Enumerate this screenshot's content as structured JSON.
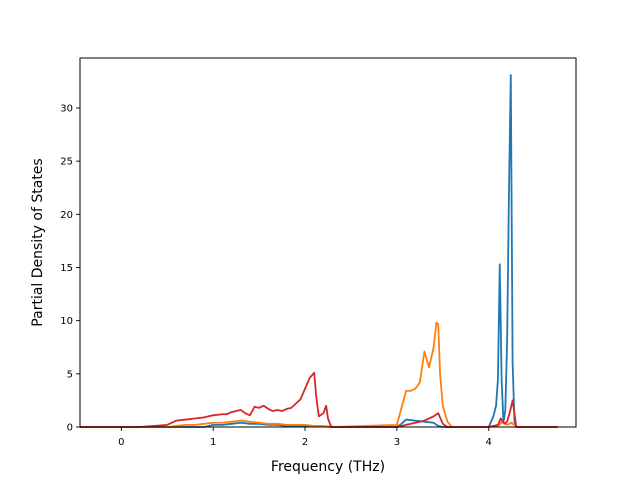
{
  "chart_data": {
    "type": "line",
    "title": "",
    "xlabel": "Frequency (THz)",
    "ylabel": "Partial Density of States",
    "xlim": [
      -0.45,
      4.95
    ],
    "ylim": [
      0,
      34.7
    ],
    "xticks": [
      0,
      1,
      2,
      3,
      4
    ],
    "yticks": [
      0,
      5,
      10,
      15,
      20,
      25,
      30
    ],
    "grid": false,
    "legend": "none",
    "series": [
      {
        "color": "#1f77b4",
        "x": [
          -0.45,
          0.9,
          1.0,
          1.1,
          1.2,
          1.3,
          1.4,
          1.5,
          1.6,
          1.7,
          1.8,
          1.9,
          2.0,
          2.1,
          2.2,
          2.3,
          3.0,
          3.05,
          3.1,
          3.2,
          3.3,
          3.4,
          3.45,
          3.5,
          3.55,
          3.6,
          4.0,
          4.05,
          4.08,
          4.1,
          4.12,
          4.14,
          4.16,
          4.18,
          4.2,
          4.22,
          4.24,
          4.26,
          4.28,
          4.3,
          4.35,
          4.75
        ],
        "y": [
          0,
          0,
          0.2,
          0.2,
          0.3,
          0.4,
          0.3,
          0.3,
          0.2,
          0.2,
          0.1,
          0.1,
          0.1,
          0.05,
          0.05,
          0,
          0,
          0.3,
          0.7,
          0.6,
          0.5,
          0.4,
          0.1,
          0,
          0,
          0,
          0,
          1.0,
          2.0,
          4.5,
          15.3,
          4.5,
          0.5,
          1.5,
          8.0,
          22.0,
          33.1,
          6.0,
          0.5,
          0,
          0,
          0
        ]
      },
      {
        "color": "#ff7f0e",
        "x": [
          -0.45,
          0.5,
          0.6,
          0.7,
          0.8,
          0.9,
          1.0,
          1.1,
          1.2,
          1.3,
          1.4,
          1.5,
          1.6,
          1.7,
          1.8,
          1.9,
          2.0,
          2.1,
          2.2,
          2.3,
          3.0,
          3.05,
          3.1,
          3.15,
          3.2,
          3.25,
          3.3,
          3.35,
          3.4,
          3.43,
          3.45,
          3.47,
          3.5,
          3.55,
          3.6,
          4.0,
          4.1,
          4.15,
          4.2,
          4.25,
          4.3,
          4.75
        ],
        "y": [
          0,
          0,
          0.1,
          0.2,
          0.2,
          0.3,
          0.4,
          0.4,
          0.5,
          0.6,
          0.5,
          0.4,
          0.3,
          0.3,
          0.2,
          0.2,
          0.2,
          0.1,
          0.1,
          0,
          0.2,
          1.8,
          3.4,
          3.4,
          3.6,
          4.2,
          7.1,
          5.6,
          7.5,
          9.8,
          9.7,
          5.0,
          2.0,
          0.5,
          0,
          0,
          0.1,
          0.5,
          0.2,
          0.4,
          0,
          0
        ]
      },
      {
        "color": "#d62728",
        "x": [
          -0.45,
          0.2,
          0.5,
          0.6,
          0.7,
          0.8,
          0.9,
          1.0,
          1.1,
          1.15,
          1.2,
          1.25,
          1.3,
          1.35,
          1.4,
          1.45,
          1.5,
          1.55,
          1.6,
          1.65,
          1.7,
          1.75,
          1.8,
          1.85,
          1.9,
          1.95,
          2.0,
          2.05,
          2.1,
          2.12,
          2.15,
          2.2,
          2.23,
          2.25,
          2.28,
          2.3,
          3.0,
          3.1,
          3.2,
          3.3,
          3.35,
          3.4,
          3.45,
          3.5,
          3.55,
          4.0,
          4.1,
          4.13,
          4.17,
          4.2,
          4.23,
          4.26,
          4.3,
          4.75
        ],
        "y": [
          0,
          0,
          0.2,
          0.6,
          0.7,
          0.8,
          0.9,
          1.1,
          1.2,
          1.2,
          1.4,
          1.5,
          1.6,
          1.3,
          1.1,
          1.9,
          1.8,
          2.0,
          1.7,
          1.5,
          1.6,
          1.5,
          1.7,
          1.8,
          2.2,
          2.6,
          3.6,
          4.6,
          5.1,
          3.0,
          1.0,
          1.3,
          2.0,
          0.8,
          0.1,
          0,
          0,
          0.2,
          0.4,
          0.6,
          0.8,
          1.0,
          1.3,
          0.3,
          0,
          0,
          0.2,
          0.8,
          0.3,
          0.5,
          1.4,
          2.5,
          0,
          0
        ]
      }
    ]
  }
}
